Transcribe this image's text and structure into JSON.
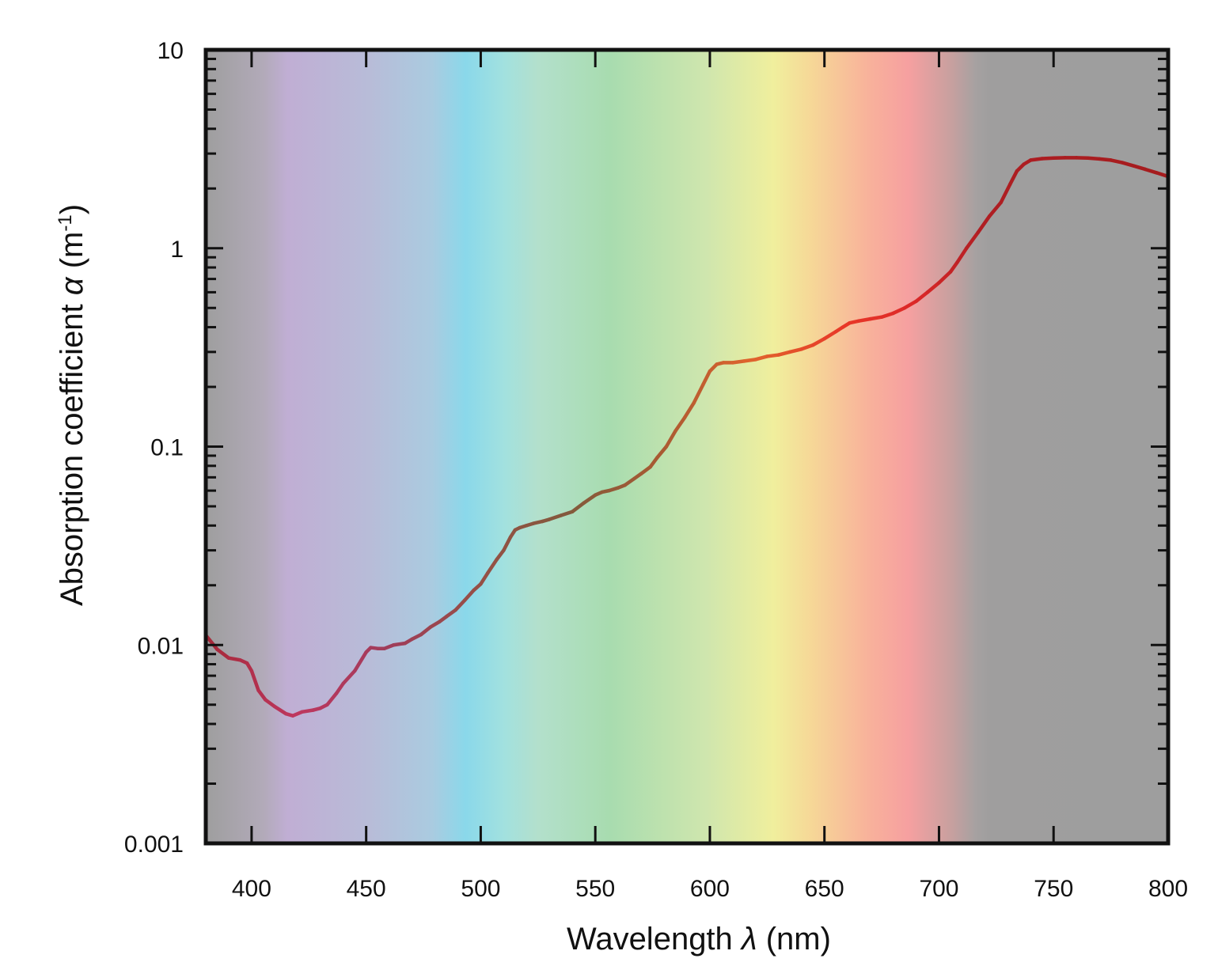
{
  "chart_data": {
    "type": "line",
    "title": "",
    "xlabel": "Wavelength",
    "xlabel_symbol": "λ",
    "xlabel_unit": "(nm)",
    "ylabel": "Absorption coefficient",
    "ylabel_symbol": "α",
    "ylabel_unit_base": "(m",
    "ylabel_unit_exp": "-1",
    "ylabel_unit_close": ")",
    "xlim": [
      380,
      800
    ],
    "ylim": [
      0.001,
      10
    ],
    "y_scale": "log",
    "grid": false,
    "legend": "none",
    "x_ticks": [
      "400",
      "450",
      "500",
      "550",
      "600",
      "650",
      "700",
      "750",
      "800"
    ],
    "y_ticks": [
      "0.001",
      "0.01",
      "0.1",
      "1",
      "10"
    ],
    "background": "visible spectrum color bands from violet to red, gray outside visible range",
    "series": [
      {
        "x": [
          380,
          385,
          390,
          395,
          398,
          400,
          403,
          406,
          410,
          415,
          418,
          422,
          427,
          430,
          433,
          437,
          440,
          445,
          450,
          452,
          455,
          458,
          462,
          467,
          470,
          474,
          478,
          482,
          485,
          489,
          493,
          497,
          500,
          503,
          507,
          510,
          513,
          515,
          517,
          520,
          523,
          527,
          530,
          535,
          540,
          545,
          550,
          553,
          556,
          560,
          563,
          567,
          570,
          574,
          577,
          581,
          585,
          589,
          593,
          597,
          600,
          603,
          606,
          610,
          615,
          620,
          625,
          630,
          635,
          640,
          645,
          650,
          655,
          658,
          661,
          665,
          670,
          675,
          680,
          685,
          690,
          695,
          700,
          705,
          708,
          712,
          717,
          722,
          727,
          731,
          734,
          737,
          740,
          745,
          750,
          755,
          760,
          765,
          770,
          775,
          780,
          785,
          790,
          795,
          800
        ],
        "values": [
          0.0112,
          0.0095,
          0.0086,
          0.0084,
          0.0081,
          0.0074,
          0.0059,
          0.0053,
          0.0049,
          0.0045,
          0.0044,
          0.0046,
          0.0047,
          0.0048,
          0.005,
          0.0057,
          0.0064,
          0.0074,
          0.0092,
          0.0097,
          0.0096,
          0.0096,
          0.01,
          0.0102,
          0.0107,
          0.0113,
          0.0123,
          0.0131,
          0.0139,
          0.015,
          0.0168,
          0.0189,
          0.0203,
          0.023,
          0.027,
          0.03,
          0.035,
          0.038,
          0.039,
          0.04,
          0.041,
          0.042,
          0.043,
          0.045,
          0.047,
          0.052,
          0.057,
          0.059,
          0.06,
          0.062,
          0.064,
          0.069,
          0.073,
          0.079,
          0.088,
          0.1,
          0.12,
          0.14,
          0.166,
          0.205,
          0.24,
          0.26,
          0.265,
          0.265,
          0.27,
          0.275,
          0.285,
          0.29,
          0.3,
          0.31,
          0.325,
          0.35,
          0.38,
          0.4,
          0.42,
          0.43,
          0.44,
          0.45,
          0.47,
          0.5,
          0.54,
          0.6,
          0.67,
          0.76,
          0.85,
          1.0,
          1.2,
          1.45,
          1.7,
          2.1,
          2.45,
          2.65,
          2.78,
          2.83,
          2.85,
          2.86,
          2.86,
          2.85,
          2.82,
          2.78,
          2.7,
          2.6,
          2.5,
          2.4,
          2.3
        ]
      }
    ]
  }
}
